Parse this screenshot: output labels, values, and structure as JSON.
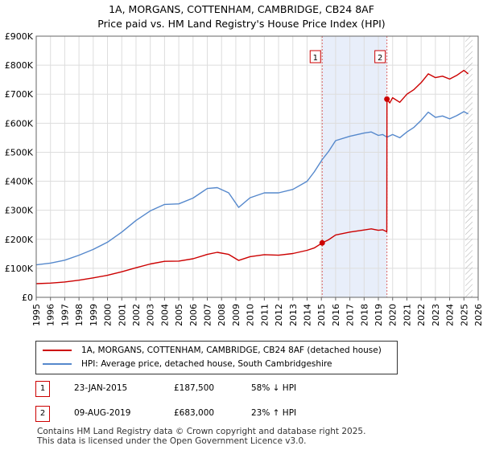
{
  "title": "1A, MORGANS, COTTENHAM, CAMBRIDGE, CB24 8AF",
  "subtitle": "Price paid vs. HM Land Registry's House Price Index (HPI)",
  "colors": {
    "property": "#cc0000",
    "hpi": "#5588cc",
    "shade": "#e8eefa",
    "grid": "#dddddd"
  },
  "chart_data": {
    "type": "line",
    "title": "1A, MORGANS, COTTENHAM, CAMBRIDGE, CB24 8AF",
    "xlabel": "",
    "ylabel": "",
    "xlim": [
      1995,
      2026
    ],
    "ylim": [
      0,
      900000
    ],
    "yticks": [
      0,
      100000,
      200000,
      300000,
      400000,
      500000,
      600000,
      700000,
      800000,
      900000
    ],
    "ytick_labels": [
      "£0",
      "£100K",
      "£200K",
      "£300K",
      "£400K",
      "£500K",
      "£600K",
      "£700K",
      "£800K",
      "£900K"
    ],
    "xticks": [
      "1995",
      "1996",
      "1997",
      "1998",
      "1999",
      "2000",
      "2001",
      "2002",
      "2003",
      "2004",
      "2005",
      "2006",
      "2007",
      "2008",
      "2009",
      "2010",
      "2011",
      "2012",
      "2013",
      "2014",
      "2015",
      "2016",
      "2017",
      "2018",
      "2019",
      "2020",
      "2021",
      "2022",
      "2023",
      "2024",
      "2025",
      "2026"
    ],
    "shaded_range": [
      2015.06,
      2019.6
    ],
    "forecast_start": 2025.1,
    "series": [
      {
        "name": "1A, MORGANS, COTTENHAM, CAMBRIDGE, CB24 8AF (detached house)",
        "x": [
          1995,
          1996,
          1997,
          1998,
          1999,
          2000,
          2001,
          2002,
          2003,
          2004,
          2005,
          2006,
          2007,
          2007.7,
          2008.5,
          2009.2,
          2010,
          2011,
          2012,
          2013,
          2014,
          2014.5,
          2015.06,
          2015.5,
          2016,
          2017,
          2018,
          2018.5,
          2019.0,
          2019.3,
          2019.59,
          2019.6,
          2019.8,
          2020,
          2020.5,
          2021,
          2021.5,
          2022,
          2022.5,
          2023,
          2023.5,
          2024,
          2024.5,
          2025,
          2025.3
        ],
        "y": [
          47000,
          49000,
          53000,
          59000,
          67000,
          76000,
          88000,
          102000,
          115000,
          124000,
          125000,
          133000,
          148000,
          155000,
          148000,
          127000,
          140000,
          147000,
          145000,
          151000,
          162000,
          170000,
          187500,
          198000,
          215000,
          225000,
          232000,
          236000,
          231000,
          233000,
          226000,
          683000,
          670000,
          688000,
          672000,
          700000,
          716000,
          740000,
          770000,
          757000,
          762000,
          752000,
          765000,
          782000,
          770000
        ]
      },
      {
        "name": "HPI: Average price, detached house, South Cambridgeshire",
        "x": [
          1995,
          1996,
          1997,
          1998,
          1999,
          2000,
          2001,
          2002,
          2003,
          2004,
          2005,
          2006,
          2007,
          2007.7,
          2008.5,
          2009.2,
          2010,
          2011,
          2012,
          2013,
          2014,
          2014.5,
          2015.06,
          2015.5,
          2016,
          2017,
          2018,
          2018.5,
          2019.0,
          2019.3,
          2019.6,
          2020,
          2020.5,
          2021,
          2021.5,
          2022,
          2022.5,
          2023,
          2023.5,
          2024,
          2024.5,
          2025,
          2025.3
        ],
        "y": [
          112000,
          118000,
          128000,
          145000,
          165000,
          190000,
          225000,
          265000,
          298000,
          320000,
          322000,
          342000,
          375000,
          378000,
          360000,
          310000,
          343000,
          360000,
          360000,
          372000,
          400000,
          432000,
          475000,
          502000,
          540000,
          555000,
          566000,
          570000,
          558000,
          561000,
          552000,
          561000,
          550000,
          570000,
          586000,
          610000,
          638000,
          620000,
          625000,
          615000,
          626000,
          640000,
          632000
        ]
      }
    ],
    "annotations": [
      {
        "label": "1",
        "x": 2015.06,
        "y": 187500
      },
      {
        "label": "2",
        "x": 2019.6,
        "y": 683000
      }
    ]
  },
  "legend": {
    "property_label": "1A, MORGANS, COTTENHAM, CAMBRIDGE, CB24 8AF (detached house)",
    "hpi_label": "HPI: Average price, detached house, South Cambridgeshire"
  },
  "transactions": [
    {
      "num": "1",
      "date": "23-JAN-2015",
      "price": "£187,500",
      "hpi": "58% ↓ HPI"
    },
    {
      "num": "2",
      "date": "09-AUG-2019",
      "price": "£683,000",
      "hpi": "23% ↑ HPI"
    }
  ],
  "footer": {
    "line1": "Contains HM Land Registry data © Crown copyright and database right 2025.",
    "line2": "This data is licensed under the Open Government Licence v3.0."
  }
}
